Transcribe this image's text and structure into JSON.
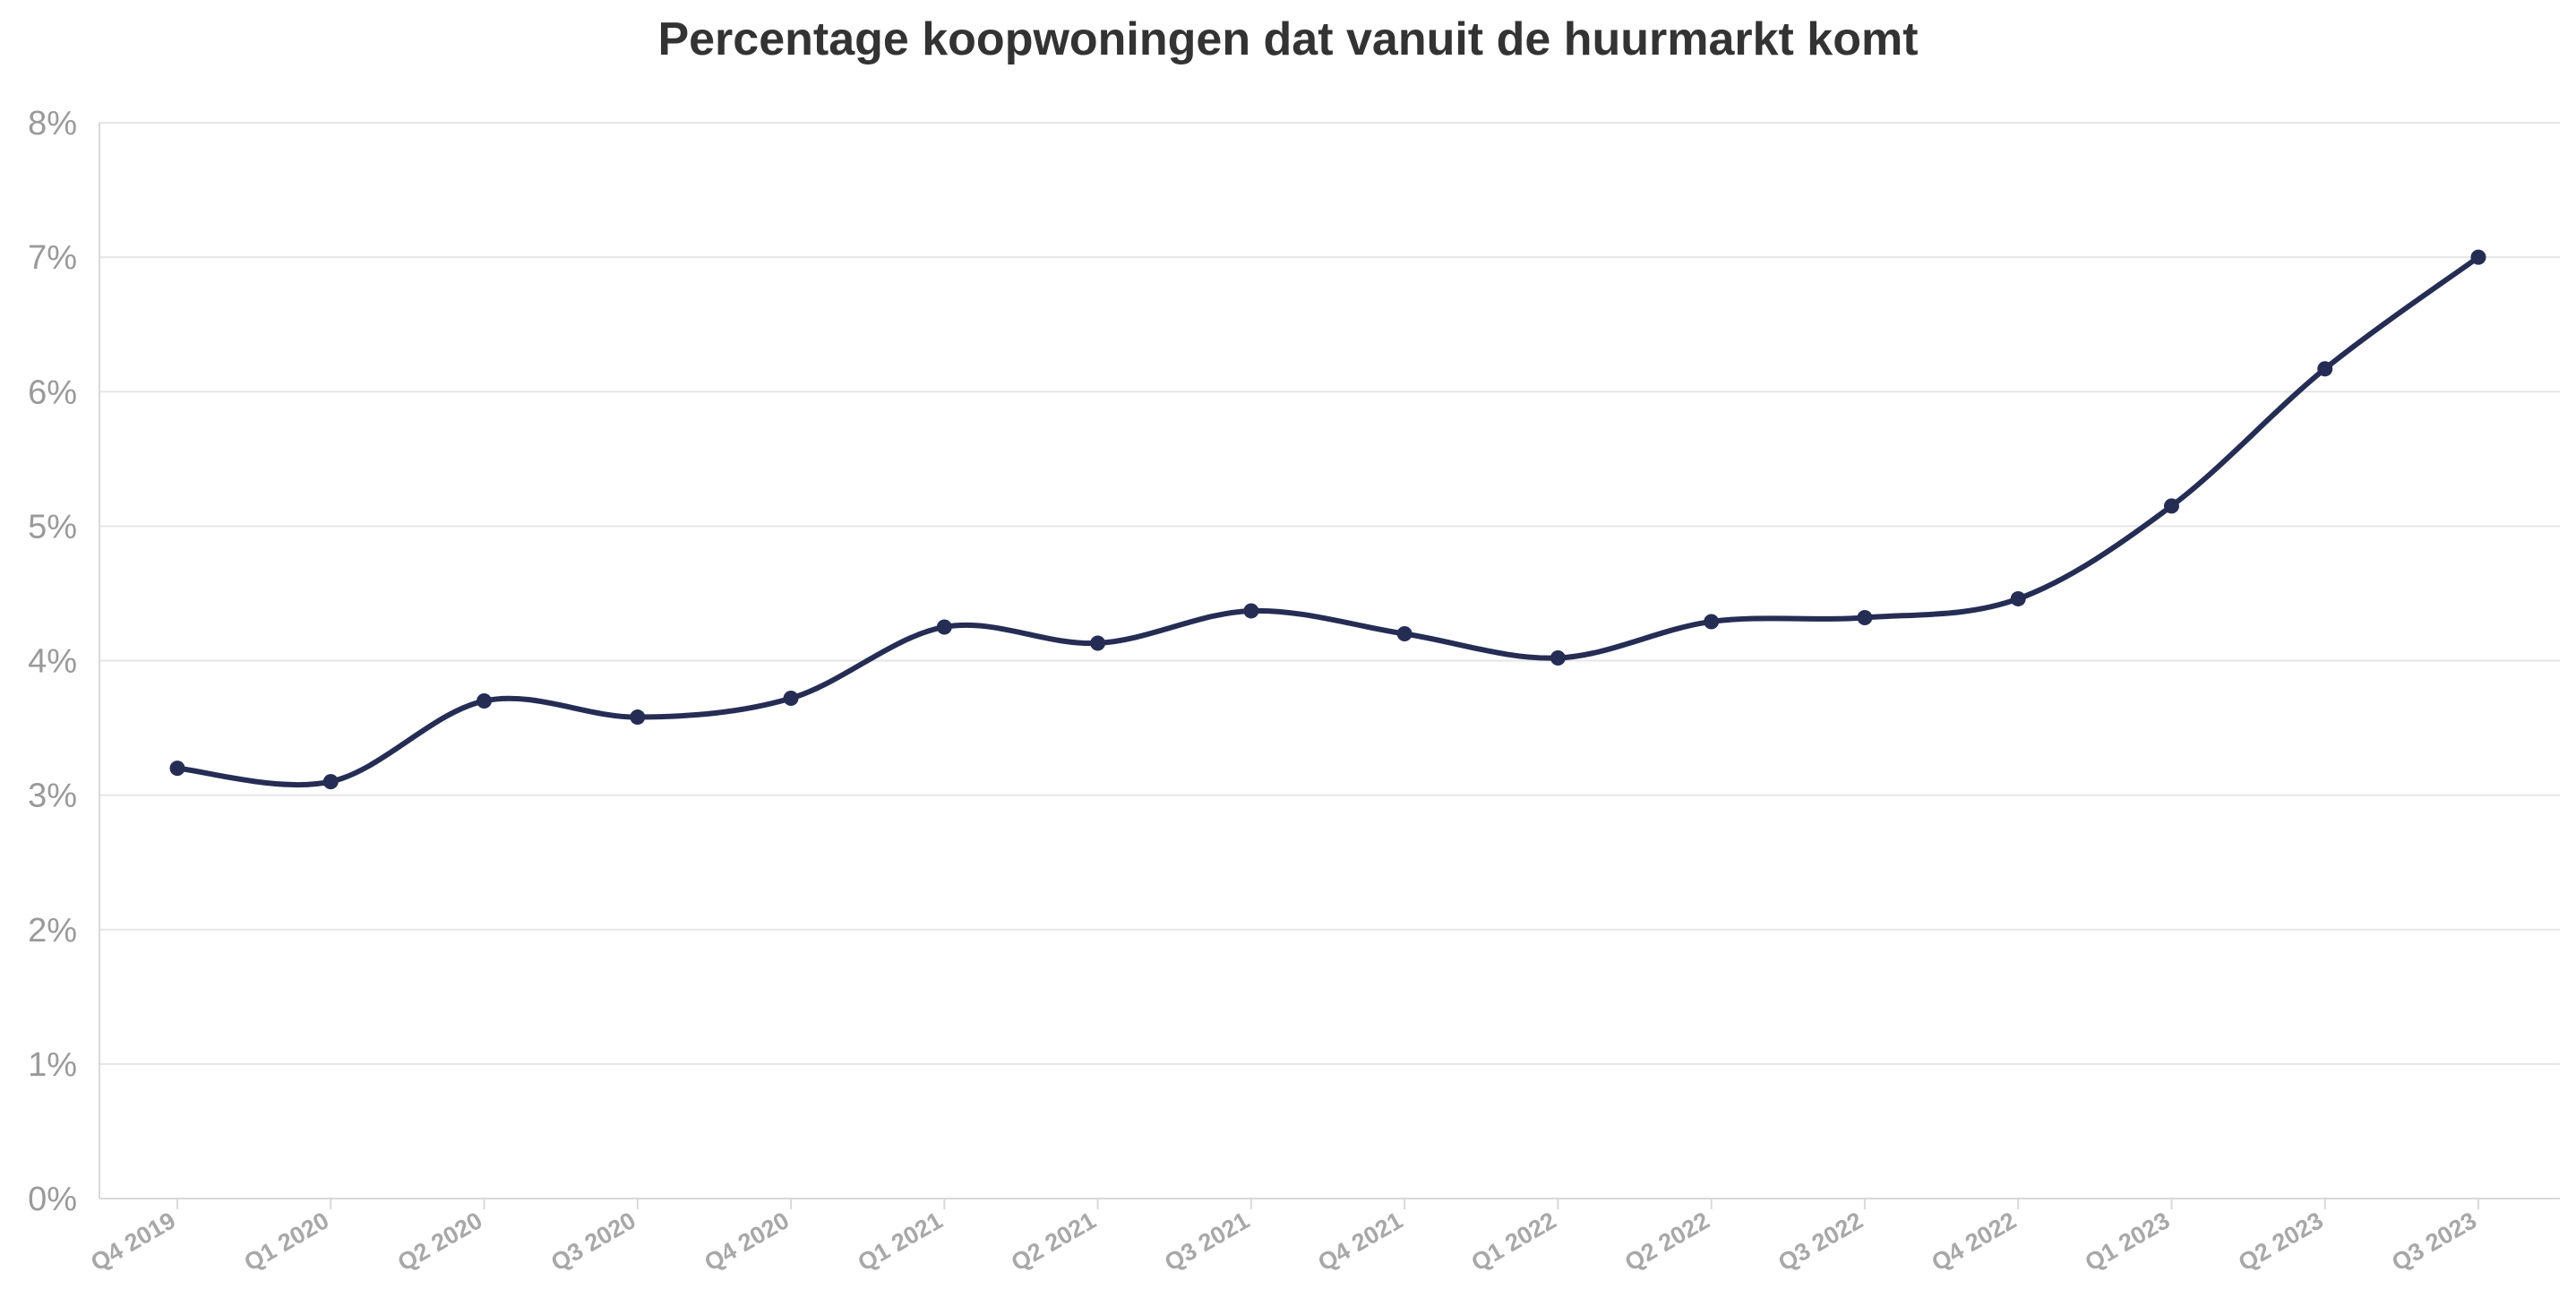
{
  "chart_data": {
    "type": "line",
    "title": "Percentage koopwoningen dat vanuit de huurmarkt komt",
    "xlabel": "",
    "ylabel": "",
    "categories": [
      "Q4 2019",
      "Q1 2020",
      "Q2 2020",
      "Q3 2020",
      "Q4 2020",
      "Q1 2021",
      "Q2 2021",
      "Q3 2021",
      "Q4 2021",
      "Q1 2022",
      "Q2 2022",
      "Q3 2022",
      "Q4 2022",
      "Q1 2023",
      "Q2 2023",
      "Q3 2023"
    ],
    "series": [
      {
        "values": [
          3.2,
          3.1,
          3.7,
          3.58,
          3.72,
          4.25,
          4.13,
          4.37,
          4.2,
          4.02,
          4.29,
          4.32,
          4.46,
          5.15,
          6.17,
          7.0
        ],
        "color": "#252d54"
      }
    ],
    "ylim": [
      0,
      8
    ],
    "yticks": [
      "0%",
      "1%",
      "2%",
      "3%",
      "4%",
      "5%",
      "6%",
      "7%",
      "8%"
    ],
    "grid": true,
    "legend": "none",
    "line_color": "#252d54"
  }
}
